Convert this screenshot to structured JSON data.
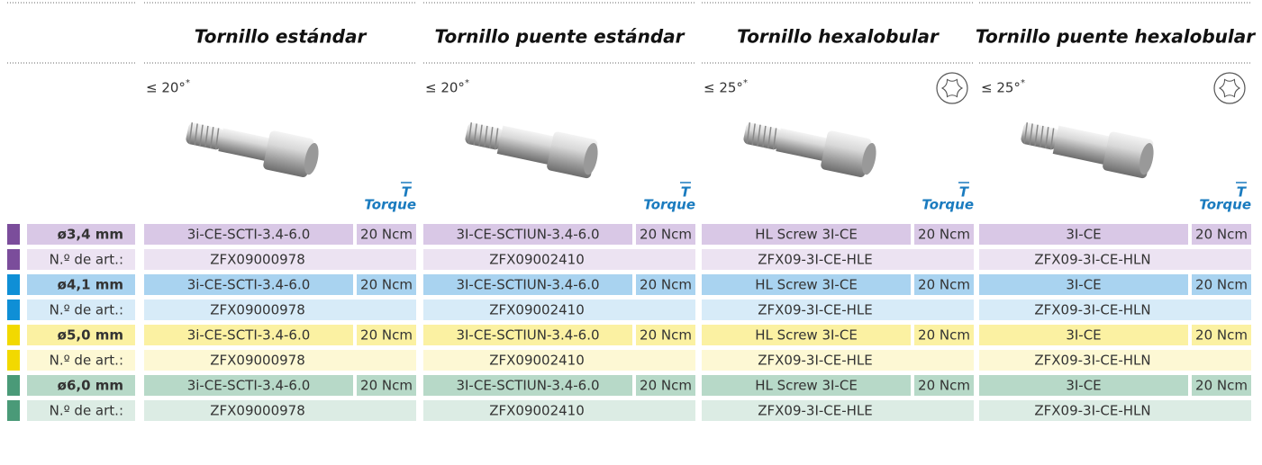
{
  "columns": [
    {
      "title": "Tornillo estándar",
      "angle": "≤ 20°",
      "angle_mark": "*",
      "torque_symbol": "T",
      "torque_label": "Torque",
      "torx_icon": false
    },
    {
      "title": "Tornillo puente estándar",
      "angle": "≤ 20°",
      "angle_mark": "*",
      "torque_symbol": "T",
      "torque_label": "Torque",
      "torx_icon": false
    },
    {
      "title": "Tornillo hexalobular",
      "angle": "≤ 25°",
      "angle_mark": "*",
      "torque_symbol": "T",
      "torque_label": "Torque",
      "torx_icon": true
    },
    {
      "title": "Tornillo puente hexalobular",
      "angle": "≤ 25°",
      "angle_mark": "*",
      "torque_symbol": "T",
      "torque_label": "Torque",
      "torx_icon": true
    }
  ],
  "groups": [
    {
      "diameter": "ø3,4 mm",
      "article_label": "N.º de art.:",
      "items": [
        {
          "code": "3i-CE-SCTI-3.4-6.0",
          "torque": "20 Ncm",
          "article": "ZFX09000978"
        },
        {
          "code": "3I-CE-SCTIUN-3.4-6.0",
          "torque": "20 Ncm",
          "article": "ZFX09002410"
        },
        {
          "code": "HL Screw 3I-CE",
          "torque": "20 Ncm",
          "article": "ZFX09-3I-CE-HLE"
        },
        {
          "code": "3I-CE",
          "torque": "20 Ncm",
          "article": "ZFX09-3I-CE-HLN"
        }
      ]
    },
    {
      "diameter": "ø4,1 mm",
      "article_label": "N.º de art.:",
      "items": [
        {
          "code": "3i-CE-SCTI-3.4-6.0",
          "torque": "20 Ncm",
          "article": "ZFX09000978"
        },
        {
          "code": "3I-CE-SCTIUN-3.4-6.0",
          "torque": "20 Ncm",
          "article": "ZFX09002410"
        },
        {
          "code": "HL Screw 3I-CE",
          "torque": "20 Ncm",
          "article": "ZFX09-3I-CE-HLE"
        },
        {
          "code": "3I-CE",
          "torque": "20 Ncm",
          "article": "ZFX09-3I-CE-HLN"
        }
      ]
    },
    {
      "diameter": "ø5,0 mm",
      "article_label": "N.º de art.:",
      "items": [
        {
          "code": "3i-CE-SCTI-3.4-6.0",
          "torque": "20 Ncm",
          "article": "ZFX09000978"
        },
        {
          "code": "3I-CE-SCTIUN-3.4-6.0",
          "torque": "20 Ncm",
          "article": "ZFX09002410"
        },
        {
          "code": "HL Screw 3I-CE",
          "torque": "20 Ncm",
          "article": "ZFX09-3I-CE-HLE"
        },
        {
          "code": "3I-CE",
          "torque": "20 Ncm",
          "article": "ZFX09-3I-CE-HLN"
        }
      ]
    },
    {
      "diameter": "ø6,0 mm",
      "article_label": "N.º de art.:",
      "items": [
        {
          "code": "3i-CE-SCTI-3.4-6.0",
          "torque": "20 Ncm",
          "article": "ZFX09000978"
        },
        {
          "code": "3I-CE-SCTIUN-3.4-6.0",
          "torque": "20 Ncm",
          "article": "ZFX09002410"
        },
        {
          "code": "HL Screw 3I-CE",
          "torque": "20 Ncm",
          "article": "ZFX09-3I-CE-HLE"
        },
        {
          "code": "3I-CE",
          "torque": "20 Ncm",
          "article": "ZFX09-3I-CE-HLN"
        }
      ]
    }
  ]
}
